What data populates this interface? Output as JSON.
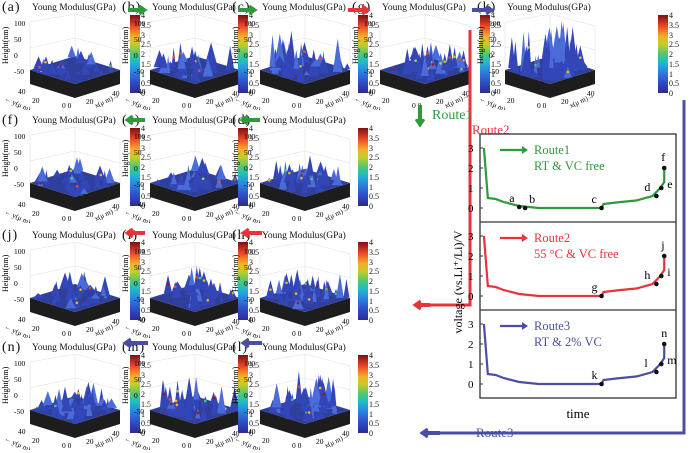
{
  "panel_common": {
    "title": "Young Modulus(GPa)",
    "z_axis_label": "Height(nm)",
    "z_ticks": [
      "100",
      "50",
      "0",
      "-50"
    ],
    "y_axis_label": "y(μ m)",
    "x_axis_label": "x(μ m)",
    "xy_ticks": [
      "40",
      "20",
      "0 0",
      "20",
      "40"
    ],
    "colorbar_ticks": [
      "4",
      "3.5",
      "3",
      "2.5",
      "2",
      "1.5",
      "1",
      "0.5",
      "0"
    ],
    "colorbar_range_gpa": [
      0,
      4
    ]
  },
  "panels": [
    {
      "id": "a",
      "label": "(a)",
      "roughness": 0.25,
      "hot": 0.1
    },
    {
      "id": "b",
      "label": "(b)",
      "roughness": 0.45,
      "hot": 0.08
    },
    {
      "id": "c",
      "label": "(c)",
      "roughness": 0.7,
      "hot": 0.12
    },
    {
      "id": "g",
      "label": "(g)",
      "roughness": 0.55,
      "hot": 0.35
    },
    {
      "id": "k",
      "label": "(k)",
      "roughness": 0.9,
      "hot": 0.05
    },
    {
      "id": "f",
      "label": "(f)",
      "roughness": 0.3,
      "hot": 0.15
    },
    {
      "id": "e",
      "label": "(e)",
      "roughness": 0.3,
      "hot": 0.1
    },
    {
      "id": "d",
      "label": "(d)",
      "roughness": 0.4,
      "hot": 0.2
    },
    {
      "id": "j",
      "label": "(j)",
      "roughness": 0.4,
      "hot": 0.15
    },
    {
      "id": "i",
      "label": "(i)",
      "roughness": 0.45,
      "hot": 0.2
    },
    {
      "id": "h",
      "label": "(h)",
      "roughness": 0.5,
      "hot": 0.18
    },
    {
      "id": "n",
      "label": "(n)",
      "roughness": 0.55,
      "hot": 0.12
    },
    {
      "id": "m",
      "label": "(m)",
      "roughness": 0.6,
      "hot": 0.22
    },
    {
      "id": "l",
      "label": "(l)",
      "roughness": 0.7,
      "hot": 0.2
    }
  ],
  "routes": {
    "route1_label": "Route1",
    "route2_label": "Route2",
    "route3_label": "Route3",
    "colors": {
      "route1": "#2e9a3a",
      "route2": "#e8333a",
      "route3": "#4a4fa3"
    }
  },
  "chart_data": {
    "type": "line",
    "title": "",
    "xlabel": "time",
    "ylabel": "voltage (vs.Li⁺/Li)/V",
    "ylim": [
      0,
      3.3
    ],
    "yticks": [
      "0",
      "1",
      "2",
      "3"
    ],
    "subplots": [
      {
        "name": "Route1",
        "legend_line1": "Route1",
        "legend_line2": "RT & VC free",
        "color": "#2e9a3a",
        "x": [
          0.02,
          0.04,
          0.08,
          0.12,
          0.2,
          0.3,
          0.4,
          0.62,
          0.63,
          0.7,
          0.8,
          0.88,
          0.92,
          0.94,
          0.94
        ],
        "y": [
          3.0,
          0.5,
          0.45,
          0.3,
          0.1,
          0.0,
          0.0,
          0.0,
          0.2,
          0.28,
          0.38,
          0.6,
          1.0,
          1.3,
          2.0
        ],
        "points": [
          {
            "label": "a",
            "x": 0.2,
            "y": 0.05
          },
          {
            "label": "b",
            "x": 0.23,
            "y": 0.0
          },
          {
            "label": "c",
            "x": 0.62,
            "y": 0.0
          },
          {
            "label": "d",
            "x": 0.9,
            "y": 0.6
          },
          {
            "label": "e",
            "x": 0.925,
            "y": 1.0
          },
          {
            "label": "f",
            "x": 0.94,
            "y": 2.0
          }
        ]
      },
      {
        "name": "Route2",
        "legend_line1": "Route2",
        "legend_line2": "55 °C & VC free",
        "color": "#e8333a",
        "x": [
          0.02,
          0.04,
          0.08,
          0.12,
          0.2,
          0.3,
          0.4,
          0.62,
          0.63,
          0.7,
          0.8,
          0.88,
          0.92,
          0.94,
          0.94
        ],
        "y": [
          3.0,
          0.5,
          0.45,
          0.3,
          0.1,
          0.0,
          0.0,
          0.0,
          0.2,
          0.28,
          0.38,
          0.6,
          1.0,
          1.3,
          2.0
        ],
        "points": [
          {
            "label": "g",
            "x": 0.62,
            "y": 0.0
          },
          {
            "label": "h",
            "x": 0.9,
            "y": 0.6
          },
          {
            "label": "i",
            "x": 0.925,
            "y": 1.0
          },
          {
            "label": "j",
            "x": 0.94,
            "y": 2.0
          }
        ]
      },
      {
        "name": "Route3",
        "legend_line1": "Route3",
        "legend_line2": "RT & 2% VC",
        "color": "#4a4fa3",
        "x": [
          0.02,
          0.04,
          0.08,
          0.12,
          0.2,
          0.3,
          0.4,
          0.62,
          0.63,
          0.7,
          0.8,
          0.88,
          0.92,
          0.94,
          0.94
        ],
        "y": [
          3.0,
          0.5,
          0.45,
          0.3,
          0.1,
          0.0,
          0.0,
          0.0,
          0.2,
          0.28,
          0.38,
          0.6,
          1.0,
          1.3,
          2.0
        ],
        "points": [
          {
            "label": "k",
            "x": 0.62,
            "y": 0.0
          },
          {
            "label": "l",
            "x": 0.9,
            "y": 0.6
          },
          {
            "label": "m",
            "x": 0.925,
            "y": 1.0
          },
          {
            "label": "n",
            "x": 0.94,
            "y": 2.0
          }
        ]
      }
    ]
  }
}
